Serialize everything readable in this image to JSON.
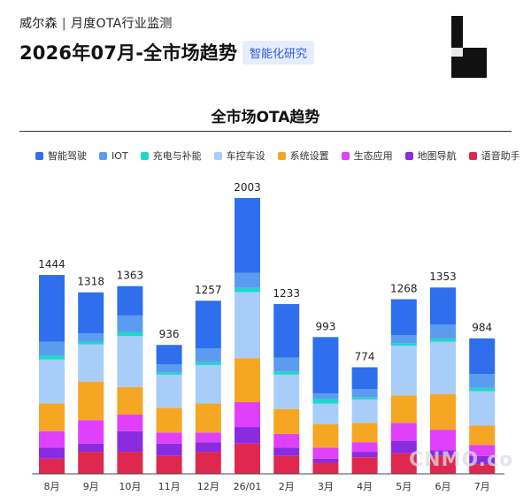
{
  "header": {
    "brand": "威尔森",
    "separator": "|",
    "subtitle": "月度OTA行业监测",
    "headline": "2026年07月-全市场趋势",
    "tag": "智能化研究"
  },
  "watermark": "CNMO.co",
  "chart_data": {
    "type": "bar",
    "stacked": true,
    "title": "全市场OTA趋势",
    "legend_position": "top",
    "categories": [
      "8月",
      "9月",
      "10月",
      "11月",
      "12月",
      "26/01",
      "2月",
      "3月",
      "4月",
      "5月",
      "6月",
      "7月"
    ],
    "totals": [
      1444,
      1318,
      1363,
      936,
      1257,
      2003,
      1233,
      993,
      774,
      1268,
      1353,
      984
    ],
    "series": [
      {
        "name": "语音助手",
        "color": "#e0284f",
        "values": [
          110,
          160,
          160,
          130,
          160,
          220,
          130,
          80,
          120,
          150,
          130,
          70
        ]
      },
      {
        "name": "地图导航",
        "color": "#8a2be2",
        "values": [
          80,
          60,
          150,
          90,
          70,
          120,
          60,
          30,
          40,
          90,
          40,
          60
        ]
      },
      {
        "name": "生态应用",
        "color": "#e040fb",
        "values": [
          120,
          170,
          120,
          80,
          70,
          180,
          100,
          80,
          70,
          130,
          150,
          80
        ]
      },
      {
        "name": "系统设置",
        "color": "#f5a623",
        "values": [
          200,
          280,
          200,
          180,
          210,
          320,
          180,
          170,
          140,
          200,
          260,
          140
        ]
      },
      {
        "name": "车控车设",
        "color": "#a8cdf8",
        "values": [
          320,
          270,
          370,
          240,
          280,
          480,
          250,
          150,
          170,
          360,
          380,
          250
        ]
      },
      {
        "name": "充电与补能",
        "color": "#1ed8c8",
        "values": [
          30,
          20,
          30,
          16,
          20,
          30,
          23,
          33,
          14,
          18,
          23,
          24
        ]
      },
      {
        "name": "IOT",
        "color": "#5b9cf0",
        "values": [
          100,
          60,
          120,
          60,
          100,
          110,
          100,
          40,
          60,
          60,
          100,
          100
        ]
      },
      {
        "name": "智能驾驶",
        "color": "#2f6fee",
        "values": [
          484,
          298,
          213,
          140,
          347,
          543,
          390,
          410,
          160,
          260,
          270,
          260
        ]
      }
    ],
    "ylim": [
      0,
      2003
    ],
    "grid": false
  }
}
